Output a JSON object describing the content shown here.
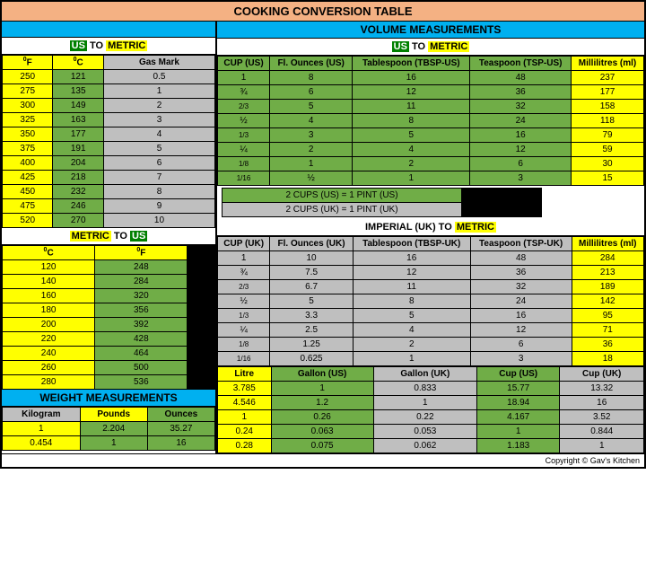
{
  "title": "COOKING CONVERSION TABLE",
  "copyright": "Copyright © Gav's Kitchen",
  "left": {
    "us_to_metric": {
      "label_us": "US",
      "label_to": " TO ",
      "label_metric": "METRIC",
      "headers": [
        "⁰F",
        "⁰C",
        "Gas Mark"
      ],
      "header_colors": [
        "yellow",
        "yellow",
        "grey"
      ],
      "rows": [
        [
          "250",
          "121",
          "0.5"
        ],
        [
          "275",
          "135",
          "1"
        ],
        [
          "300",
          "149",
          "2"
        ],
        [
          "325",
          "163",
          "3"
        ],
        [
          "350",
          "177",
          "4"
        ],
        [
          "375",
          "191",
          "5"
        ],
        [
          "400",
          "204",
          "6"
        ],
        [
          "425",
          "218",
          "7"
        ],
        [
          "450",
          "232",
          "8"
        ],
        [
          "475",
          "246",
          "9"
        ],
        [
          "520",
          "270",
          "10"
        ]
      ],
      "row_colors": [
        "yellow",
        "green",
        "grey"
      ]
    },
    "metric_to_us": {
      "label_metric": "METRIC",
      "label_to": " TO ",
      "label_us": "US",
      "headers": [
        "⁰C",
        "⁰F",
        ""
      ],
      "header_colors": [
        "yellow",
        "yellow",
        "black"
      ],
      "rows": [
        [
          "120",
          "248",
          ""
        ],
        [
          "140",
          "284",
          ""
        ],
        [
          "160",
          "320",
          ""
        ],
        [
          "180",
          "356",
          ""
        ],
        [
          "200",
          "392",
          ""
        ],
        [
          "220",
          "428",
          ""
        ],
        [
          "240",
          "464",
          ""
        ],
        [
          "260",
          "500",
          ""
        ],
        [
          "280",
          "536",
          ""
        ]
      ],
      "row_colors": [
        "yellow",
        "green",
        "black"
      ]
    },
    "weight": {
      "title": "WEIGHT MEASUREMENTS",
      "headers": [
        "Kilogram",
        "Pounds",
        "Ounces"
      ],
      "header_colors": [
        "grey",
        "yellow",
        "green"
      ],
      "rows": [
        [
          "1",
          "2.204",
          "35.27"
        ],
        [
          "0.454",
          "1",
          "16"
        ]
      ],
      "row_colors": [
        "yellow",
        "green",
        "green"
      ]
    }
  },
  "right": {
    "volume_title": "VOLUME MEASUREMENTS",
    "us_to_metric": {
      "label_us": "US",
      "label_to": " TO ",
      "label_metric": "METRIC",
      "headers": [
        "CUP (US)",
        "Fl. Ounces (US)",
        "Tablespoon (TBSP-US)",
        "Teaspoon (TSP-US)",
        "Millilitres (ml)"
      ],
      "header_colors": [
        "green",
        "green",
        "green",
        "green",
        "yellow"
      ],
      "rows": [
        [
          "1",
          "8",
          "16",
          "48",
          "237"
        ],
        [
          "¾",
          "6",
          "12",
          "36",
          "177"
        ],
        [
          "2/3",
          "5",
          "11",
          "32",
          "158"
        ],
        [
          "½",
          "4",
          "8",
          "24",
          "118"
        ],
        [
          "1/3",
          "3",
          "5",
          "16",
          "79"
        ],
        [
          "¼",
          "2",
          "4",
          "12",
          "59"
        ],
        [
          "1/8",
          "1",
          "2",
          "6",
          "30"
        ],
        [
          "1/16",
          "½",
          "1",
          "3",
          "15"
        ]
      ],
      "row_colors": [
        "green",
        "green",
        "green",
        "green",
        "yellow"
      ]
    },
    "notes": [
      {
        "text": "2 CUPS (US) = 1 PINT (US)",
        "color": "green"
      },
      {
        "text": "2 CUPS (UK) = 1 PINT (UK)",
        "color": "grey"
      }
    ],
    "uk_to_metric": {
      "label_imp": "IMPERIAL (UK)",
      "label_to": " TO ",
      "label_metric": "METRIC",
      "headers": [
        "CUP (UK)",
        "Fl. Ounces (UK)",
        "Tablespoon (TBSP-UK)",
        "Teaspoon (TSP-UK)",
        "Millilitres (ml)"
      ],
      "header_colors": [
        "grey",
        "grey",
        "grey",
        "grey",
        "yellow"
      ],
      "rows": [
        [
          "1",
          "10",
          "16",
          "48",
          "284"
        ],
        [
          "¾",
          "7.5",
          "12",
          "36",
          "213"
        ],
        [
          "2/3",
          "6.7",
          "11",
          "32",
          "189"
        ],
        [
          "½",
          "5",
          "8",
          "24",
          "142"
        ],
        [
          "1/3",
          "3.3",
          "5",
          "16",
          "95"
        ],
        [
          "¼",
          "2.5",
          "4",
          "12",
          "71"
        ],
        [
          "1/8",
          "1.25",
          "2",
          "6",
          "36"
        ],
        [
          "1/16",
          "0.625",
          "1",
          "3",
          "18"
        ]
      ],
      "row_colors": [
        "grey",
        "grey",
        "grey",
        "grey",
        "yellow"
      ]
    },
    "litre": {
      "headers": [
        "Litre",
        "Gallon (US)",
        "Gallon (UK)",
        "Cup (US)",
        "Cup (UK)"
      ],
      "header_colors": [
        "yellow",
        "green",
        "grey",
        "green",
        "grey"
      ],
      "rows": [
        [
          "3.785",
          "1",
          "0.833",
          "15.77",
          "13.32"
        ],
        [
          "4.546",
          "1.2",
          "1",
          "18.94",
          "16"
        ],
        [
          "1",
          "0.26",
          "0.22",
          "4.167",
          "3.52"
        ],
        [
          "0.24",
          "0.063",
          "0.053",
          "1",
          "0.844"
        ],
        [
          "0.28",
          "0.075",
          "0.062",
          "1.183",
          "1"
        ]
      ],
      "row_colors": [
        "yellow",
        "green",
        "grey",
        "green",
        "grey"
      ]
    }
  }
}
